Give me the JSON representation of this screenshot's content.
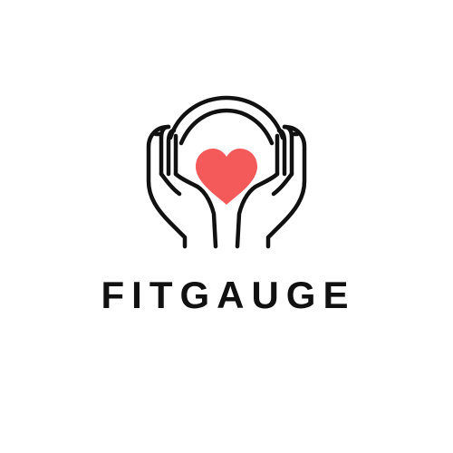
{
  "logo": {
    "icon": "hands-holding-heart-with-headband-icon",
    "heart_color": "#f55a5a",
    "line_color": "#111111"
  },
  "brand": {
    "name": "FITGAUGE"
  },
  "background_color": "#ffffff"
}
